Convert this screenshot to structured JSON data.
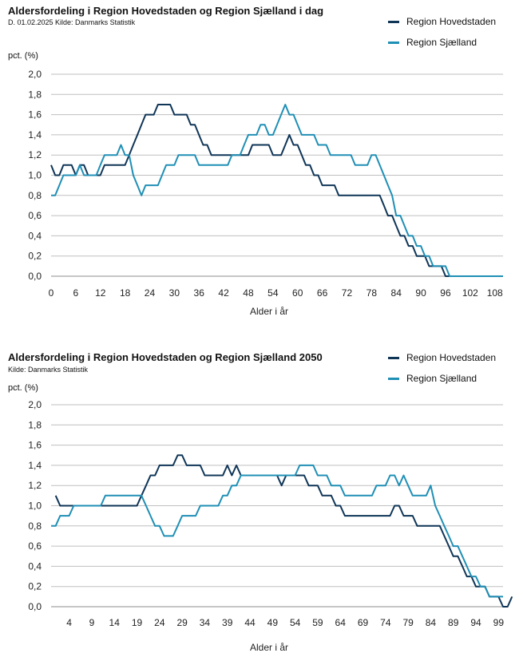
{
  "colors": {
    "hovedstaden": "#0f3557",
    "sjaelland": "#1f8fb5"
  },
  "chart_data": [
    {
      "type": "line",
      "title": "Aldersfordeling i Region Hovedstaden og Region Sjælland i dag",
      "subtitle": "D. 01.02.2025 Kilde: Danmarks Statistik",
      "ylabel": "pct. (%)",
      "xlabel": "Alder i år",
      "ylim": [
        0,
        2.0
      ],
      "yticks": [
        "0,0",
        "0,2",
        "0,4",
        "0,6",
        "0,8",
        "1,0",
        "1,2",
        "1,4",
        "1,6",
        "1,8",
        "2,0"
      ],
      "xlim": [
        0,
        110
      ],
      "xticks": [
        0,
        6,
        12,
        18,
        24,
        30,
        36,
        42,
        48,
        54,
        60,
        66,
        72,
        78,
        84,
        90,
        96,
        102,
        108
      ],
      "grid": "horizontal",
      "legend_position": "top-right",
      "series": [
        {
          "name": "Region Hovedstaden",
          "color_key": "hovedstaden",
          "x_start": 0,
          "values": [
            1.1,
            1.0,
            1.0,
            1.1,
            1.1,
            1.1,
            1.0,
            1.1,
            1.1,
            1.0,
            1.0,
            1.0,
            1.0,
            1.1,
            1.1,
            1.1,
            1.1,
            1.1,
            1.1,
            1.2,
            1.3,
            1.4,
            1.5,
            1.6,
            1.6,
            1.6,
            1.7,
            1.7,
            1.7,
            1.7,
            1.6,
            1.6,
            1.6,
            1.6,
            1.5,
            1.5,
            1.4,
            1.3,
            1.3,
            1.2,
            1.2,
            1.2,
            1.2,
            1.2,
            1.2,
            1.2,
            1.2,
            1.2,
            1.2,
            1.3,
            1.3,
            1.3,
            1.3,
            1.3,
            1.2,
            1.2,
            1.2,
            1.3,
            1.4,
            1.3,
            1.3,
            1.2,
            1.1,
            1.1,
            1.0,
            1.0,
            0.9,
            0.9,
            0.9,
            0.9,
            0.8,
            0.8,
            0.8,
            0.8,
            0.8,
            0.8,
            0.8,
            0.8,
            0.8,
            0.8,
            0.8,
            0.7,
            0.6,
            0.6,
            0.5,
            0.4,
            0.4,
            0.3,
            0.3,
            0.2,
            0.2,
            0.2,
            0.1,
            0.1,
            0.1,
            0.1,
            0.0,
            0.0,
            0.0,
            0.0,
            0.0,
            0.0,
            0.0,
            0.0,
            0.0,
            0.0,
            0.0,
            0.0,
            0.0,
            0.0,
            0.0
          ]
        },
        {
          "name": "Region Sjælland",
          "color_key": "sjaelland",
          "x_start": 0,
          "values": [
            0.8,
            0.8,
            0.9,
            1.0,
            1.0,
            1.0,
            1.0,
            1.1,
            1.0,
            1.0,
            1.0,
            1.0,
            1.1,
            1.2,
            1.2,
            1.2,
            1.2,
            1.3,
            1.2,
            1.2,
            1.0,
            0.9,
            0.8,
            0.9,
            0.9,
            0.9,
            0.9,
            1.0,
            1.1,
            1.1,
            1.1,
            1.2,
            1.2,
            1.2,
            1.2,
            1.2,
            1.1,
            1.1,
            1.1,
            1.1,
            1.1,
            1.1,
            1.1,
            1.1,
            1.2,
            1.2,
            1.2,
            1.3,
            1.4,
            1.4,
            1.4,
            1.5,
            1.5,
            1.4,
            1.4,
            1.5,
            1.6,
            1.7,
            1.6,
            1.6,
            1.5,
            1.4,
            1.4,
            1.4,
            1.4,
            1.3,
            1.3,
            1.3,
            1.2,
            1.2,
            1.2,
            1.2,
            1.2,
            1.2,
            1.1,
            1.1,
            1.1,
            1.1,
            1.2,
            1.2,
            1.1,
            1.0,
            0.9,
            0.8,
            0.6,
            0.6,
            0.5,
            0.4,
            0.4,
            0.3,
            0.3,
            0.2,
            0.2,
            0.1,
            0.1,
            0.1,
            0.1,
            0.0,
            0.0,
            0.0,
            0.0,
            0.0,
            0.0,
            0.0,
            0.0,
            0.0,
            0.0,
            0.0,
            0.0,
            0.0,
            0.0
          ]
        }
      ]
    },
    {
      "type": "line",
      "title": "Aldersfordeling i Region Hovedstaden og Region Sjælland 2050",
      "subtitle": "Kilde: Danmarks Statistik",
      "ylabel": "pct. (%)",
      "xlabel": "Alder i år",
      "ylim": [
        0,
        2.0
      ],
      "yticks": [
        "0,0",
        "0,2",
        "0,4",
        "0,6",
        "0,8",
        "1,0",
        "1,2",
        "1,4",
        "1,6",
        "1,8",
        "2,0"
      ],
      "xlim": [
        0,
        100
      ],
      "xticks": [
        4,
        9,
        14,
        19,
        24,
        29,
        34,
        39,
        44,
        49,
        54,
        59,
        64,
        69,
        74,
        79,
        84,
        89,
        94,
        99
      ],
      "grid": "horizontal",
      "legend_position": "top-right",
      "series": [
        {
          "name": "Region Hovedstaden",
          "color_key": "hovedstaden",
          "x_start": 1,
          "values": [
            1.1,
            1.0,
            1.0,
            1.0,
            1.0,
            1.0,
            1.0,
            1.0,
            1.0,
            1.0,
            1.0,
            1.0,
            1.0,
            1.0,
            1.0,
            1.0,
            1.0,
            1.0,
            1.0,
            1.1,
            1.2,
            1.3,
            1.3,
            1.4,
            1.4,
            1.4,
            1.4,
            1.5,
            1.5,
            1.4,
            1.4,
            1.4,
            1.4,
            1.3,
            1.3,
            1.3,
            1.3,
            1.3,
            1.4,
            1.3,
            1.4,
            1.3,
            1.3,
            1.3,
            1.3,
            1.3,
            1.3,
            1.3,
            1.3,
            1.3,
            1.2,
            1.3,
            1.3,
            1.3,
            1.3,
            1.3,
            1.2,
            1.2,
            1.2,
            1.1,
            1.1,
            1.1,
            1.0,
            1.0,
            0.9,
            0.9,
            0.9,
            0.9,
            0.9,
            0.9,
            0.9,
            0.9,
            0.9,
            0.9,
            0.9,
            1.0,
            1.0,
            0.9,
            0.9,
            0.9,
            0.8,
            0.8,
            0.8,
            0.8,
            0.8,
            0.8,
            0.7,
            0.6,
            0.5,
            0.5,
            0.4,
            0.3,
            0.3,
            0.2,
            0.2,
            0.2,
            0.1,
            0.1,
            0.1,
            0.0,
            0.0,
            0.1
          ]
        },
        {
          "name": "Region Sjælland",
          "color_key": "sjaelland",
          "x_start": 0,
          "values": [
            0.8,
            0.8,
            0.9,
            0.9,
            0.9,
            1.0,
            1.0,
            1.0,
            1.0,
            1.0,
            1.0,
            1.0,
            1.1,
            1.1,
            1.1,
            1.1,
            1.1,
            1.1,
            1.1,
            1.1,
            1.1,
            1.0,
            0.9,
            0.8,
            0.8,
            0.7,
            0.7,
            0.7,
            0.8,
            0.9,
            0.9,
            0.9,
            0.9,
            1.0,
            1.0,
            1.0,
            1.0,
            1.0,
            1.1,
            1.1,
            1.2,
            1.2,
            1.3,
            1.3,
            1.3,
            1.3,
            1.3,
            1.3,
            1.3,
            1.3,
            1.3,
            1.3,
            1.3,
            1.3,
            1.3,
            1.4,
            1.4,
            1.4,
            1.4,
            1.3,
            1.3,
            1.3,
            1.2,
            1.2,
            1.2,
            1.1,
            1.1,
            1.1,
            1.1,
            1.1,
            1.1,
            1.1,
            1.2,
            1.2,
            1.2,
            1.3,
            1.3,
            1.2,
            1.3,
            1.2,
            1.1,
            1.1,
            1.1,
            1.1,
            1.2,
            1.0,
            0.9,
            0.8,
            0.7,
            0.6,
            0.6,
            0.5,
            0.4,
            0.3,
            0.3,
            0.2,
            0.2,
            0.1,
            0.1,
            0.1,
            0.1
          ]
        }
      ]
    }
  ]
}
